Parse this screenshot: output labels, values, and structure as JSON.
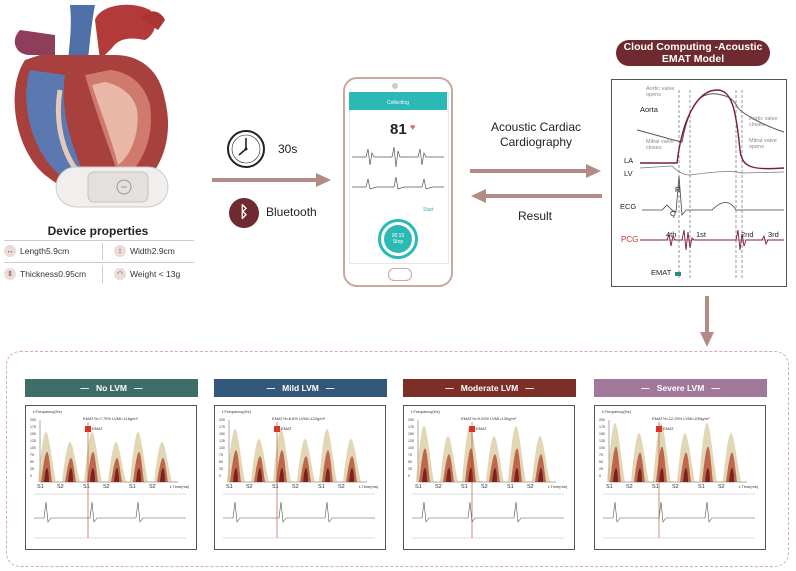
{
  "device": {
    "title": "Device properties",
    "length": "Length5.9cm",
    "width": "Width2.9cm",
    "thickness": "Thickness0.95cm",
    "weight": "Weight < 13g"
  },
  "middle": {
    "duration": "30s",
    "bluetooth": "Bluetooth",
    "acc_line1": "Acoustic Cardiac",
    "acc_line2": "Cardiography",
    "result": "Result"
  },
  "phone": {
    "header": "Collecting",
    "bpm": "81",
    "timer": "00:15",
    "stop": "Stop",
    "start": "Start"
  },
  "cloud": {
    "title_line1": "Cloud Computing -Acoustic",
    "title_line2": "EMAT Model",
    "aortic_opens_1": "Aortic valve",
    "aortic_opens_2": "opens",
    "aortic_closes_1": "Aortic valve",
    "aortic_closes_2": "closes",
    "mitral_closes_1": "Mitral valve",
    "mitral_closes_2": "closes",
    "mitral_opens_1": "Mitral valve",
    "mitral_opens_2": "opens",
    "aorta": "Aorta",
    "la": "LA",
    "lv": "LV",
    "ecg": "ECG",
    "r": "R",
    "q": "Q",
    "pcg": "PCG",
    "s4": "4th",
    "s1": "1st",
    "s2": "2nd",
    "s3": "3rd",
    "emat": "EMAT"
  },
  "lvm": [
    {
      "label": "No LVM",
      "color": "#3f6e6a",
      "stats": "EMAT%=7.75%   LVMI=116g/m²"
    },
    {
      "label": "Mild LVM",
      "color": "#33577a",
      "stats": "EMAT%=8.8%   LVMI=122g/m²"
    },
    {
      "label": "Moderate LVM",
      "color": "#7c2f26",
      "stats": "EMAT%=9.03%   LVMI=130g/m²"
    },
    {
      "label": "Severe LVM",
      "color": "#a2789a",
      "stats": "EMAT%=12.25%   LVMI=235g/m²"
    }
  ],
  "spectro": {
    "ylabel": "f-Frequency(Hz)",
    "xlabel": "t-Time(ms)",
    "emat": "EMAT",
    "s1": "S1",
    "s2": "S2",
    "yticks": [
      "200",
      "175",
      "150",
      "125",
      "100",
      "75",
      "50",
      "25",
      "0"
    ]
  },
  "colors": {
    "accent": "#6e2a2e",
    "arrow": "#b38b86",
    "teal": "#2cb9b5"
  }
}
